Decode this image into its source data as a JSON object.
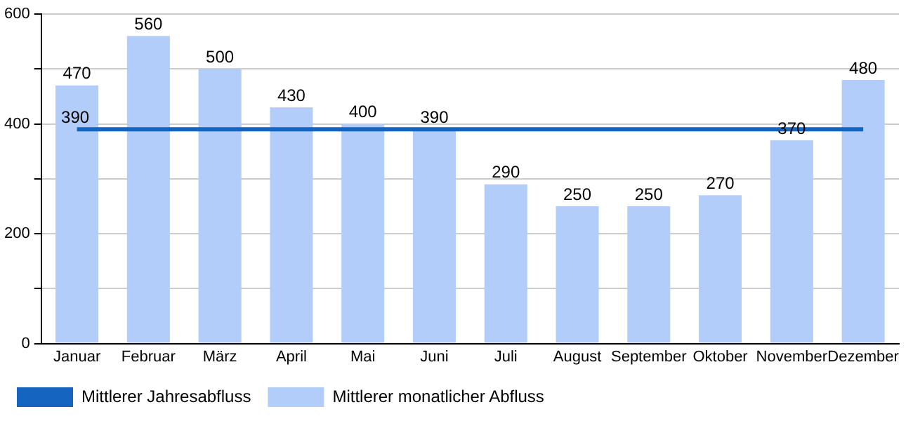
{
  "chart_data": {
    "type": "bar",
    "categories": [
      "Januar",
      "Februar",
      "März",
      "April",
      "Mai",
      "Juni",
      "Juli",
      "August",
      "September",
      "Oktober",
      "November",
      "Dezember"
    ],
    "series": [
      {
        "name": "Mittlerer Jahresabfluss",
        "type": "line",
        "color": "#1565c0",
        "marker": "none",
        "line_style": "solid",
        "values": [
          390,
          390,
          390,
          390,
          390,
          390,
          390,
          390,
          390,
          390,
          390,
          390
        ],
        "value_labels": [
          "390",
          null,
          null,
          null,
          null,
          null,
          null,
          null,
          null,
          null,
          null,
          null
        ]
      },
      {
        "name": "Mittlerer monatlicher Abfluss",
        "color": "#b3cdfb",
        "values": [
          470,
          560,
          500,
          430,
          400,
          390,
          290,
          250,
          250,
          270,
          370,
          480
        ],
        "value_labels": [
          "470",
          "560",
          "500",
          "430",
          "400",
          "390",
          "290",
          "250",
          "250",
          "270",
          "370",
          "480"
        ]
      }
    ],
    "ylim": [
      0,
      600
    ],
    "yticks": [
      0,
      {
        "value": 100,
        "label": null
      },
      200,
      {
        "value": 300,
        "label": null
      },
      400,
      {
        "value": 500,
        "label": null
      },
      600
    ],
    "grid": "y",
    "legend": "bottom left"
  }
}
